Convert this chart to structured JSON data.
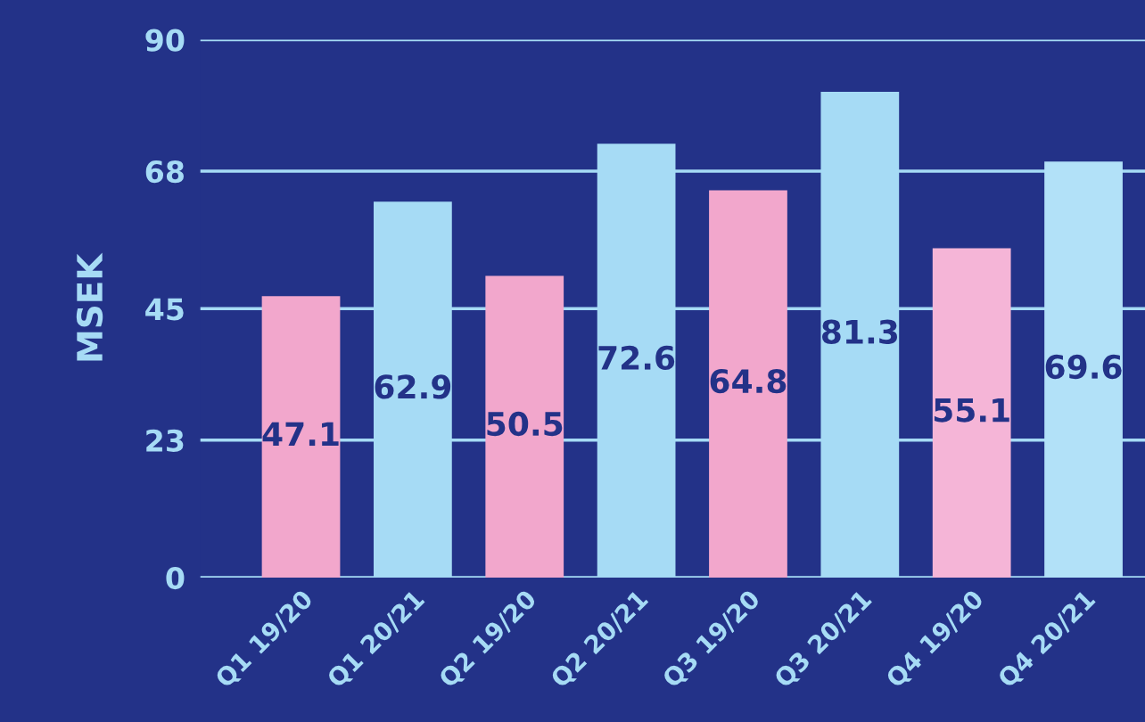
{
  "chart_data": {
    "type": "bar",
    "ylabel": "MSEK",
    "categories": [
      "Q1 19/20",
      "Q1 20/21",
      "Q2 19/20",
      "Q2 20/21",
      "Q3 19/20",
      "Q3 20/21",
      "Q4 19/20",
      "Q4 20/21"
    ],
    "values": [
      47.1,
      62.9,
      50.5,
      72.6,
      64.8,
      81.3,
      55.1,
      69.6
    ],
    "colors": [
      "#f2a7cc",
      "#a6dbf5",
      "#f2a7cc",
      "#a6dbf5",
      "#f2a7cc",
      "#a6dbf5",
      "#f5b5d7",
      "#b2e1f8"
    ],
    "ylim": [
      0,
      90
    ],
    "yticks": [
      0,
      23,
      45,
      68,
      90
    ],
    "grid": "y",
    "data_labels": true
  }
}
